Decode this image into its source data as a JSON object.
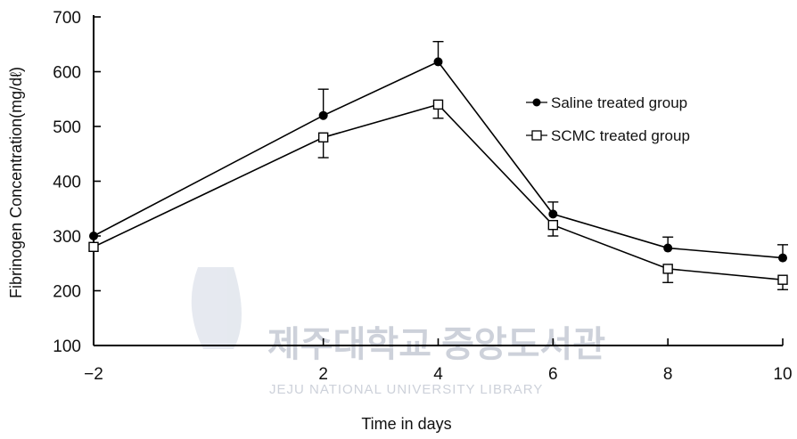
{
  "chart_data": {
    "type": "line",
    "xlabel": "Time in days",
    "ylabel": "Fibrinogen Concentration(mg/dℓ)",
    "x": [
      -2,
      2,
      4,
      6,
      8,
      10
    ],
    "xlim": [
      -2,
      10
    ],
    "ylim": [
      100,
      700
    ],
    "yticks": [
      100,
      200,
      300,
      400,
      500,
      600,
      700
    ],
    "xticks": [
      -2,
      2,
      4,
      6,
      8,
      10
    ],
    "grid": false,
    "legend_position": "right",
    "series": [
      {
        "name": "Saline treated group",
        "marker": "filled-circle",
        "values": [
          300,
          520,
          618,
          340,
          278,
          260
        ],
        "error_up": [
          0,
          48,
          37,
          22,
          20,
          24
        ]
      },
      {
        "name": "SCMC treated group",
        "marker": "open-square",
        "values": [
          280,
          480,
          540,
          320,
          240,
          220
        ],
        "error_down": [
          0,
          37,
          25,
          20,
          25,
          18
        ]
      }
    ]
  },
  "watermark": {
    "korean": "제주대학교 중앙도서관",
    "english": "JEJU NATIONAL UNIVERSITY LIBRARY"
  }
}
